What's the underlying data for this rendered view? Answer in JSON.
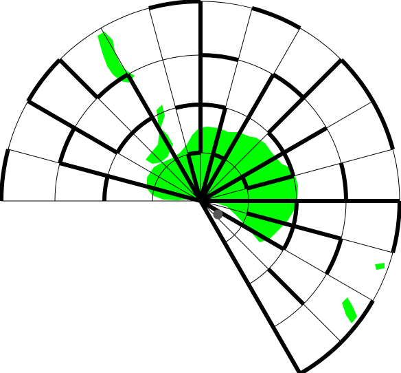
{
  "maze": {
    "type": "polar-sector-maze",
    "rings": 4,
    "sectors": 16,
    "start_angle_deg": 180,
    "end_angle_deg": -60,
    "colors": {
      "background": "#ffffff",
      "grid": "#000000",
      "wall": "#000000",
      "fill": "#00ff00",
      "player": "#555555"
    },
    "player": {
      "ring": 0,
      "sector": 14,
      "label": "player-marker"
    }
  }
}
